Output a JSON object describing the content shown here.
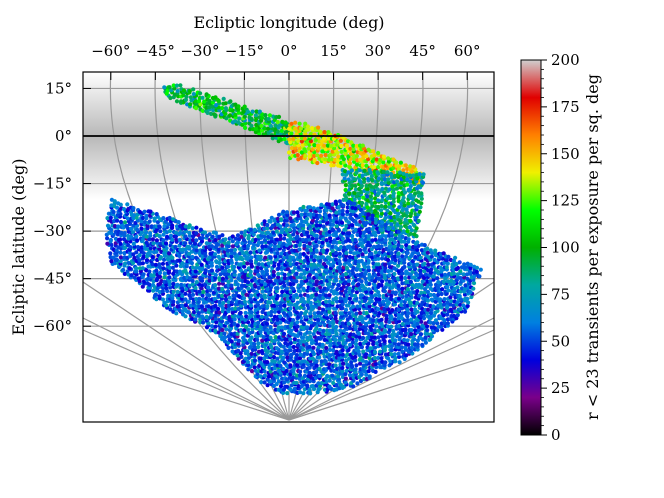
{
  "chart_data": {
    "type": "scatter",
    "projection": "ecliptic sky map",
    "xlabel": "Ecliptic longitude (deg)",
    "ylabel": "Ecliptic latitude (deg)",
    "x_ticks": [
      {
        "value": -60,
        "label": "−60°"
      },
      {
        "value": -45,
        "label": "−45°"
      },
      {
        "value": -30,
        "label": "−30°"
      },
      {
        "value": -15,
        "label": "−15°"
      },
      {
        "value": 0,
        "label": "0°"
      },
      {
        "value": 15,
        "label": "15°"
      },
      {
        "value": 30,
        "label": "30°"
      },
      {
        "value": 45,
        "label": "45°"
      },
      {
        "value": 60,
        "label": "60°"
      }
    ],
    "y_ticks": [
      {
        "value": 15,
        "label": "15°"
      },
      {
        "value": 0,
        "label": "0°"
      },
      {
        "value": -15,
        "label": "−15°"
      },
      {
        "value": -30,
        "label": "−30°"
      },
      {
        "value": -45,
        "label": "−45°"
      },
      {
        "value": -60,
        "label": "−60°"
      }
    ],
    "xlim": [
      -70,
      70
    ],
    "ylim": [
      -90,
      20
    ],
    "ecliptic_line_lat": 0,
    "galactic_band": {
      "center_lat": 0,
      "half_width_lat": 20
    },
    "colorbar": {
      "label": "r < 23 transients per exposure per sq. deg",
      "min": 0,
      "max": 200,
      "ticks": [
        0,
        25,
        50,
        75,
        100,
        125,
        150,
        175,
        200
      ],
      "colormap": [
        "#000000",
        "#7a008a",
        "#0000dd",
        "#0080e0",
        "#00a8a0",
        "#00b000",
        "#00ff00",
        "#f0f000",
        "#ff8000",
        "#e00000",
        "#d0d0d0"
      ]
    },
    "regions": [
      {
        "name": "",
        "polygon": [
          [
            -42,
            16
          ],
          [
            -36,
            16
          ],
          [
            0,
            5
          ],
          [
            0,
            -3
          ],
          [
            -38,
            11
          ],
          [
            -42,
            13
          ]
        ],
        "value_mean": 95,
        "value_spread": 25
      },
      {
        "name": "",
        "polygon": [
          [
            0,
            5
          ],
          [
            10,
            3
          ],
          [
            45,
            -11
          ],
          [
            45,
            -16
          ],
          [
            30,
            -12
          ],
          [
            0,
            -7
          ]
        ],
        "value_mean": 140,
        "value_spread": 25
      },
      {
        "name": "",
        "polygon": [
          [
            18,
            -10
          ],
          [
            46,
            -12
          ],
          [
            43,
            -32
          ],
          [
            30,
            -30
          ],
          [
            18,
            -20
          ]
        ],
        "value_mean": 85,
        "value_spread": 25
      },
      {
        "name": "",
        "polygon": [
          [
            -60,
            -20
          ],
          [
            -42,
            -25
          ],
          [
            -20,
            -32
          ],
          [
            0,
            -23
          ],
          [
            20,
            -20
          ],
          [
            40,
            -32
          ],
          [
            65,
            -42
          ],
          [
            60,
            -55
          ],
          [
            40,
            -70
          ],
          [
            20,
            -80
          ],
          [
            0,
            -82
          ],
          [
            -10,
            -78
          ],
          [
            -25,
            -62
          ],
          [
            -40,
            -55
          ],
          [
            -60,
            -40
          ],
          [
            -62,
            -30
          ]
        ],
        "value_mean": 55,
        "value_spread": 20
      }
    ]
  }
}
